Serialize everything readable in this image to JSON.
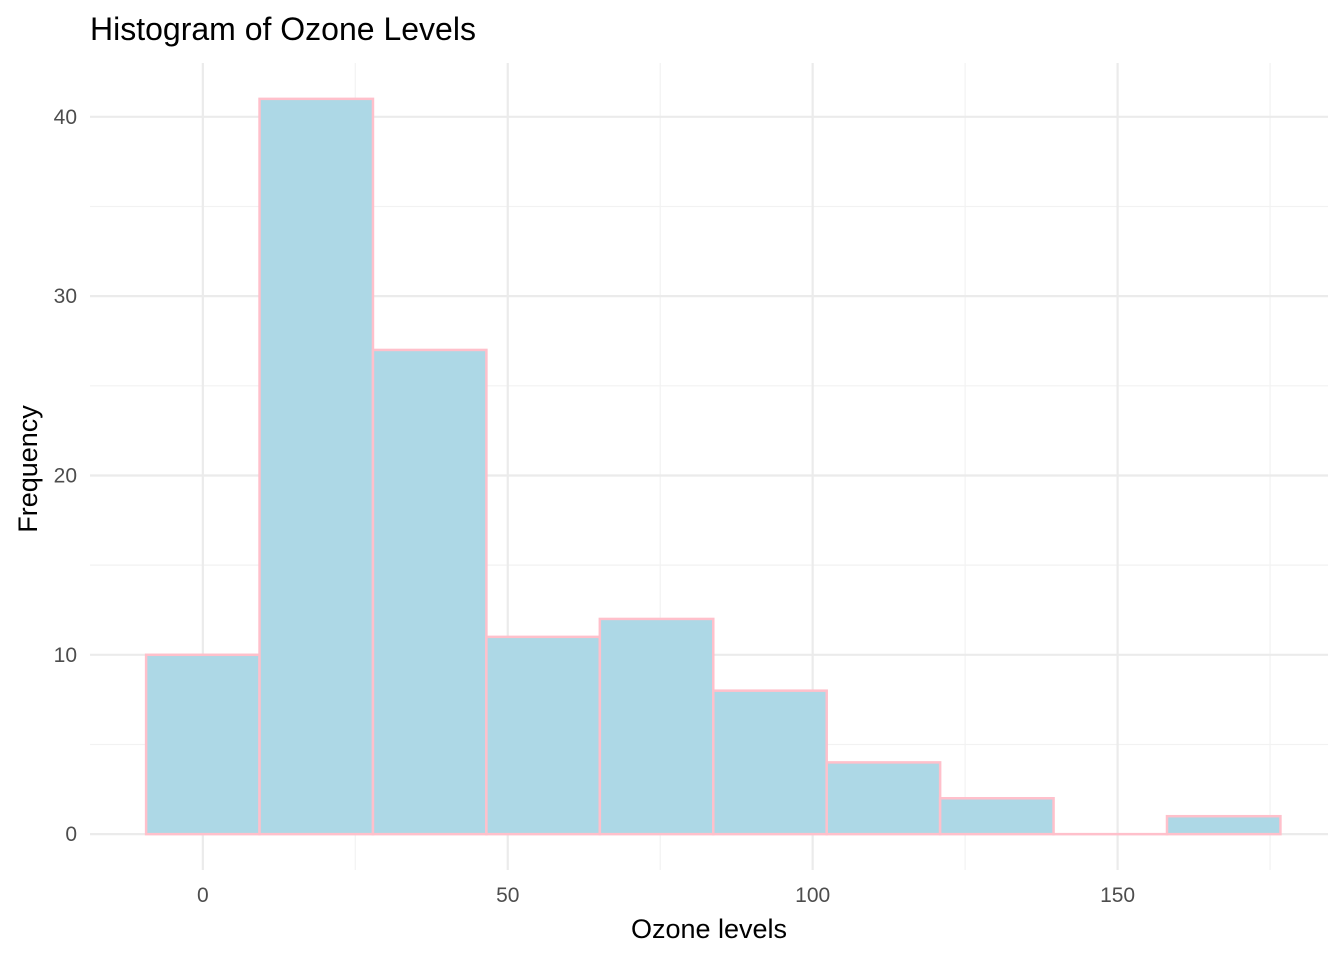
{
  "chart_data": {
    "type": "bar",
    "subtype": "histogram",
    "title": "Histogram of Ozone Levels",
    "xlabel": "Ozone levels",
    "ylabel": "Frequency",
    "xlim": [
      -18.5,
      184.5
    ],
    "ylim": [
      -2,
      43
    ],
    "x_ticks": [
      0,
      50,
      100,
      150
    ],
    "y_ticks": [
      0,
      10,
      20,
      30,
      40
    ],
    "x_tick_labels": [
      "0",
      "50",
      "100",
      "150"
    ],
    "y_tick_labels": [
      "0",
      "10",
      "20",
      "30",
      "40"
    ],
    "bins": [
      {
        "x0": -9.3,
        "x1": 9.3,
        "count": 10
      },
      {
        "x0": 9.3,
        "x1": 27.9,
        "count": 41
      },
      {
        "x0": 27.9,
        "x1": 46.5,
        "count": 27
      },
      {
        "x0": 46.5,
        "x1": 65.1,
        "count": 11
      },
      {
        "x0": 65.1,
        "x1": 83.7,
        "count": 12
      },
      {
        "x0": 83.7,
        "x1": 102.3,
        "count": 8
      },
      {
        "x0": 102.3,
        "x1": 120.9,
        "count": 4
      },
      {
        "x0": 120.9,
        "x1": 139.5,
        "count": 2
      },
      {
        "x0": 139.5,
        "x1": 158.1,
        "count": 0
      },
      {
        "x0": 158.1,
        "x1": 176.7,
        "count": 1
      }
    ],
    "grid": true,
    "legend": "none",
    "colors": {
      "fill": "#add8e6",
      "outline": "#ffc0cb",
      "background": "#ffffff"
    }
  }
}
